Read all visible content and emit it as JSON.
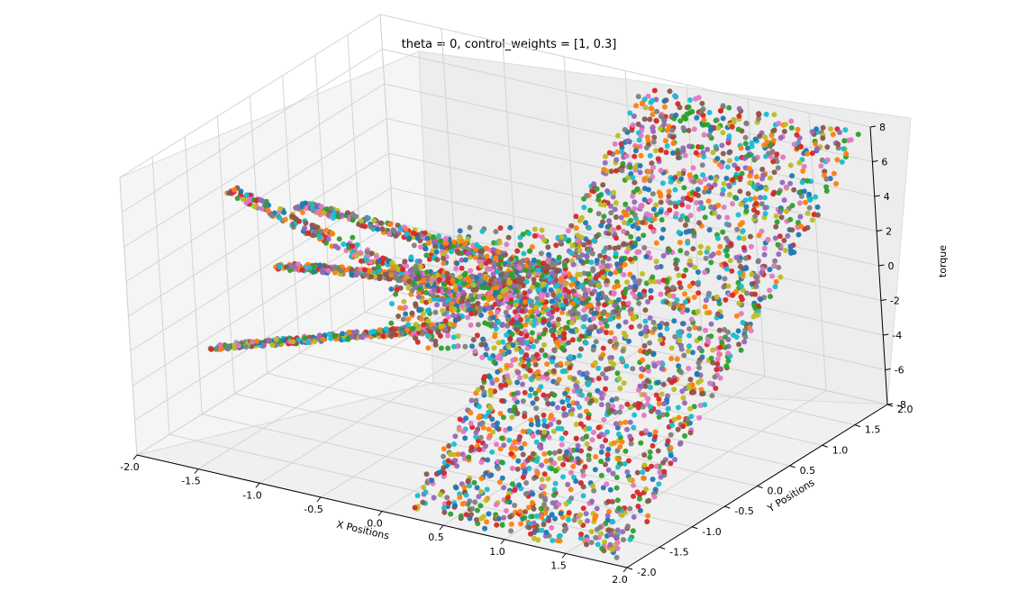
{
  "chart_data": {
    "type": "scatter",
    "projection": "3d",
    "title": "theta = 0, control_weights = [1, 0.3]",
    "xlabel": "X Positions",
    "ylabel": "Y Positions",
    "zlabel": "torque",
    "xlim": [
      -2.0,
      2.0
    ],
    "ylim": [
      -2.0,
      2.0
    ],
    "zlim": [
      -8,
      8
    ],
    "x_ticks": [
      "-2.0",
      "-1.5",
      "-1.0",
      "-0.5",
      "0.0",
      "0.5",
      "1.0",
      "1.5",
      "2.0"
    ],
    "y_ticks": [
      "-2.0",
      "-1.5",
      "-1.0",
      "-0.5",
      "0.0",
      "0.5",
      "1.0",
      "1.5",
      "2.0"
    ],
    "z_ticks": [
      "-8",
      "-6",
      "-4",
      "-2",
      "0",
      "2",
      "4",
      "6",
      "8"
    ],
    "grid": true,
    "legend": "none",
    "colors": [
      "#1f77b4",
      "#ff7f0e",
      "#2ca02c",
      "#d62728",
      "#9467bd",
      "#8c564b",
      "#e377c2",
      "#7f7f7f",
      "#bcbd22",
      "#17becf"
    ],
    "surface_samples": {
      "x": [
        -1.9,
        -1.4,
        -1.0,
        -0.6,
        -1.6,
        -1.2,
        -0.7,
        -0.3,
        0.0,
        0.3,
        0.6,
        1.0,
        1.2,
        1.5,
        1.8,
        0.9,
        1.3,
        1.7,
        0.4,
        0.8,
        1.4
      ],
      "y": [
        -0.4,
        -0.4,
        -0.4,
        -0.4,
        0.2,
        0.2,
        0.2,
        0.2,
        0.0,
        0.5,
        0.9,
        1.3,
        1.6,
        1.8,
        1.9,
        -1.4,
        -1.7,
        -1.9,
        -1.0,
        -0.6,
        -1.2
      ],
      "torque": [
        3.6,
        3.2,
        2.4,
        1.2,
        -2.0,
        -1.6,
        -1.0,
        -0.4,
        0.0,
        1.5,
        2.6,
        4.5,
        6.0,
        7.2,
        7.6,
        -5.0,
        -6.2,
        -7.0,
        -2.8,
        -1.9,
        -4.2
      ]
    }
  }
}
